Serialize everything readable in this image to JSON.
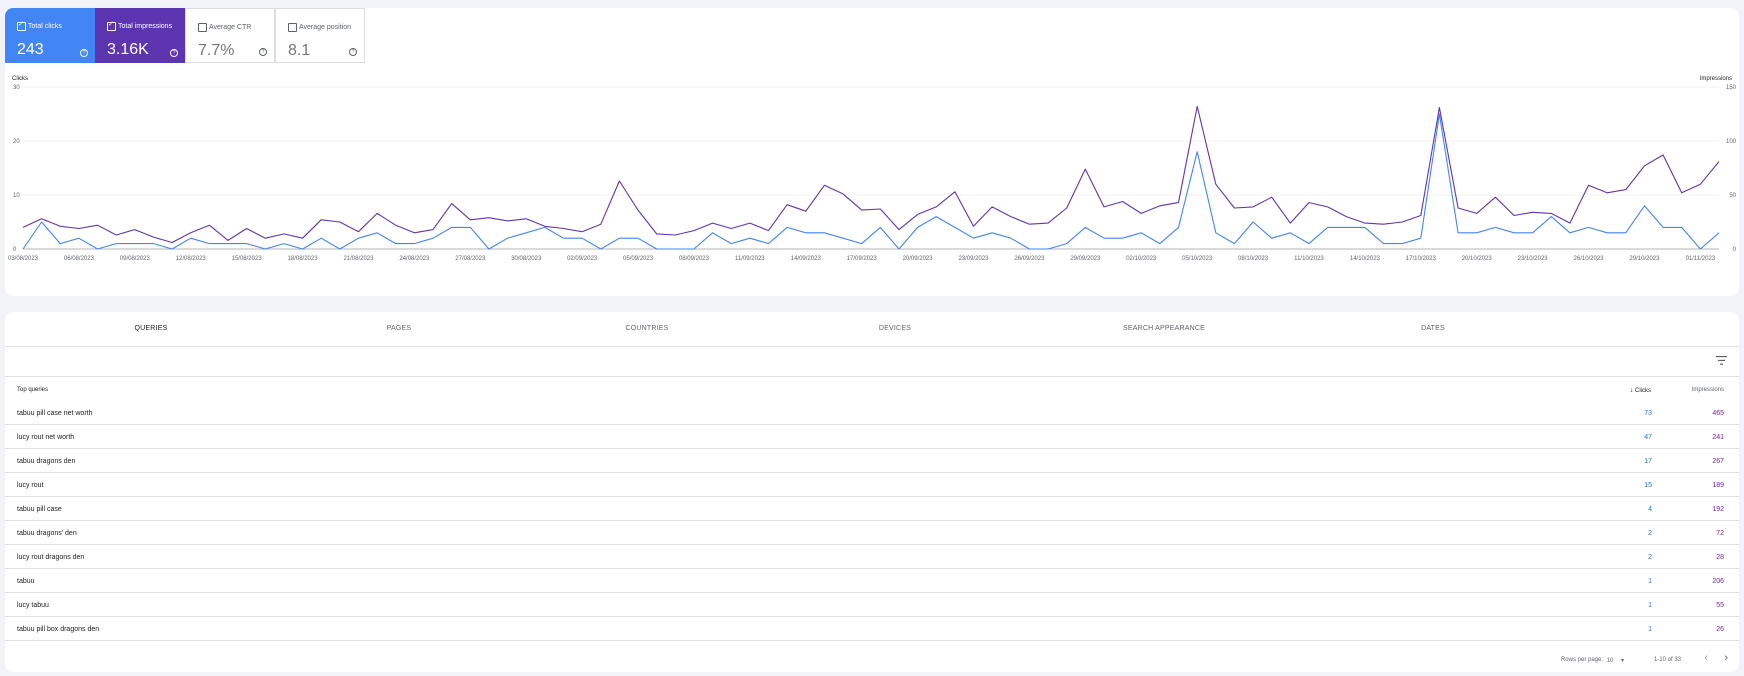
{
  "metrics": {
    "clicks": {
      "label": "Total clicks",
      "value": "243",
      "checked": true
    },
    "impressions": {
      "label": "Total impressions",
      "value": "3.16K",
      "checked": true
    },
    "ctr": {
      "label": "Average CTR",
      "value": "7.7%",
      "checked": false
    },
    "position": {
      "label": "Average position",
      "value": "8.1",
      "checked": false
    },
    "help_glyph": "?"
  },
  "chart_data": {
    "type": "line",
    "left_axis_label": "Clicks",
    "right_axis_label": "Impressions",
    "left_ticks": [
      "0",
      "10",
      "20",
      "30"
    ],
    "right_ticks": [
      "0",
      "50",
      "100",
      "150"
    ],
    "ylim_left": [
      0,
      30
    ],
    "ylim_right": [
      0,
      150
    ],
    "x_tick_labels": [
      "03/08/2023",
      "06/08/2023",
      "09/08/2023",
      "12/08/2023",
      "15/08/2023",
      "18/08/2023",
      "21/08/2023",
      "24/08/2023",
      "27/08/2023",
      "30/08/2023",
      "02/09/2023",
      "05/09/2023",
      "08/09/2023",
      "11/09/2023",
      "14/09/2023",
      "17/09/2023",
      "20/09/2023",
      "23/09/2023",
      "26/09/2023",
      "29/09/2023",
      "02/10/2023",
      "05/10/2023",
      "08/10/2023",
      "11/10/2023",
      "14/10/2023",
      "17/10/2023",
      "20/10/2023",
      "23/10/2023",
      "26/10/2023",
      "29/10/2023",
      "01/11/2023"
    ],
    "grid": true,
    "series": [
      {
        "name": "Clicks",
        "axis": "left",
        "color": "#4285f4",
        "values": [
          0,
          5,
          1,
          2,
          0,
          1,
          1,
          1,
          0,
          2,
          1,
          1,
          1,
          0,
          1,
          0,
          2,
          0,
          2,
          3,
          1,
          1,
          2,
          4,
          4,
          0,
          2,
          3,
          4,
          2,
          2,
          0,
          2,
          2,
          0,
          0,
          0,
          3,
          1,
          2,
          1,
          4,
          3,
          3,
          2,
          1,
          4,
          0,
          4,
          6,
          4,
          2,
          3,
          2,
          0,
          0,
          1,
          4,
          2,
          2,
          3,
          1,
          4,
          18,
          3,
          1,
          5,
          2,
          3,
          1,
          4,
          4,
          4,
          1,
          1,
          2,
          25,
          3,
          3,
          4,
          3,
          3,
          6,
          3,
          4,
          3,
          3,
          8,
          4,
          4,
          0,
          3
        ]
      },
      {
        "name": "Impressions",
        "axis": "right",
        "color": "#5e35b1",
        "values": [
          20,
          28,
          21,
          19,
          22,
          13,
          18,
          11,
          6,
          15,
          22,
          8,
          19,
          10,
          14,
          10,
          27,
          25,
          16,
          33,
          22,
          15,
          18,
          42,
          27,
          29,
          26,
          28,
          21,
          19,
          16,
          23,
          63,
          36,
          14,
          13,
          17,
          24,
          19,
          24,
          17,
          41,
          35,
          59,
          51,
          36,
          37,
          18,
          32,
          39,
          53,
          21,
          39,
          30,
          23,
          24,
          38,
          74,
          39,
          44,
          33,
          40,
          43,
          132,
          60,
          38,
          39,
          48,
          24,
          43,
          39,
          30,
          24,
          23,
          25,
          31,
          131,
          38,
          33,
          48,
          31,
          34,
          33,
          24,
          59,
          52,
          55,
          77,
          87,
          52,
          60,
          81
        ]
      }
    ]
  },
  "tabs": [
    "QUERIES",
    "PAGES",
    "COUNTRIES",
    "DEVICES",
    "SEARCH APPEARANCE",
    "DATES"
  ],
  "table": {
    "col_query": "Top queries",
    "col_clicks": "Clicks",
    "col_impressions": "Impressions",
    "rows": [
      {
        "query": "tabuu pill case net worth",
        "clicks": "73",
        "impressions": "465"
      },
      {
        "query": "lucy rout net worth",
        "clicks": "47",
        "impressions": "241"
      },
      {
        "query": "tabuu dragons den",
        "clicks": "17",
        "impressions": "267"
      },
      {
        "query": "lucy rout",
        "clicks": "15",
        "impressions": "189"
      },
      {
        "query": "tabuu pill case",
        "clicks": "4",
        "impressions": "192"
      },
      {
        "query": "tabuu dragons' den",
        "clicks": "2",
        "impressions": "72"
      },
      {
        "query": "lucy rout dragons den",
        "clicks": "2",
        "impressions": "28"
      },
      {
        "query": "tabuu",
        "clicks": "1",
        "impressions": "206"
      },
      {
        "query": "lucy tabuu",
        "clicks": "1",
        "impressions": "55"
      },
      {
        "query": "tabuu pill box dragons den",
        "clicks": "1",
        "impressions": "26"
      }
    ]
  },
  "pagination": {
    "rows_per_page_label": "Rows per page:",
    "rows_per_page_value": "10",
    "range": "1-10 of 33",
    "prev_glyph": "‹",
    "next_glyph": "›"
  }
}
